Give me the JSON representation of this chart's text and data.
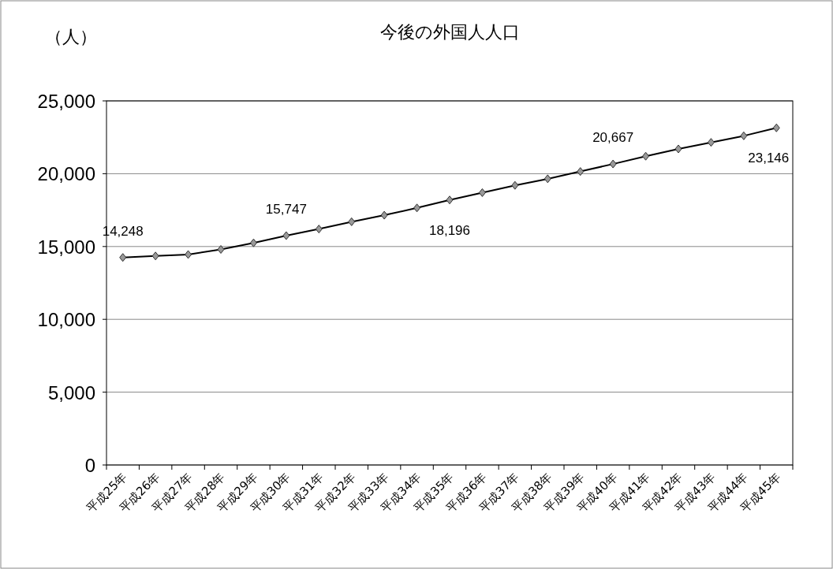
{
  "chart_data": {
    "type": "line",
    "title": "今後の外国人人口",
    "ylabel": "（人）",
    "categories": [
      "平成25年",
      "平成26年",
      "平成27年",
      "平成28年",
      "平成29年",
      "平成30年",
      "平成31年",
      "平成32年",
      "平成33年",
      "平成34年",
      "平成35年",
      "平成36年",
      "平成37年",
      "平成38年",
      "平成39年",
      "平成40年",
      "平成41年",
      "平成42年",
      "平成43年",
      "平成44年",
      "平成45年"
    ],
    "series": [
      {
        "color": "#000000",
        "values": [
          14248,
          14350,
          14450,
          14800,
          15250,
          15747,
          16200,
          16700,
          17150,
          17650,
          18196,
          18700,
          19200,
          19650,
          20150,
          20667,
          21200,
          21700,
          22150,
          22600,
          23146
        ],
        "value_labels": [
          "14,248",
          null,
          null,
          null,
          null,
          "15,747",
          null,
          null,
          null,
          null,
          "18,196",
          null,
          null,
          null,
          null,
          "20,667",
          null,
          null,
          null,
          null,
          "23,146"
        ]
      }
    ],
    "ylim": [
      0,
      25000
    ],
    "yticks": [
      {
        "value": 0,
        "label": "0"
      },
      {
        "value": 5000,
        "label": "5,000"
      },
      {
        "value": 10000,
        "label": "10,000"
      },
      {
        "value": 15000,
        "label": "15,000"
      },
      {
        "value": 20000,
        "label": "20,000"
      },
      {
        "value": 25000,
        "label": "25,000"
      }
    ],
    "grid": "y",
    "marker": "diamond",
    "line_style": "solid"
  }
}
